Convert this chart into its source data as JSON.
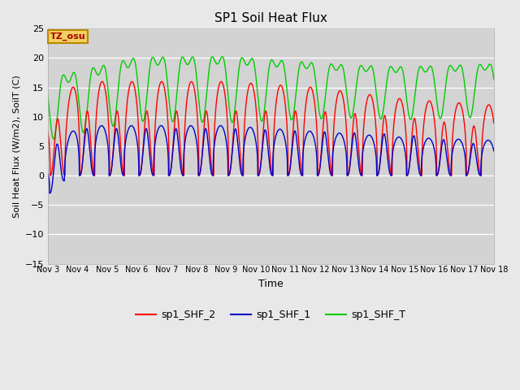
{
  "title": "SP1 Soil Heat Flux",
  "ylabel": "Soil Heat Flux (W/m2), SoilT (C)",
  "xlabel": "Time",
  "ylim": [
    -15,
    25
  ],
  "yticks": [
    -15,
    -10,
    -5,
    0,
    5,
    10,
    15,
    20,
    25
  ],
  "background_color": "#e8e8e8",
  "plot_bg_color": "#d3d3d3",
  "grid_color": "#ffffff",
  "tz_label": "TZ_osu",
  "legend_labels": [
    "sp1_SHF_2",
    "sp1_SHF_1",
    "sp1_SHF_T"
  ],
  "line_colors": [
    "#ff0000",
    "#0000cc",
    "#00cc00"
  ],
  "x_tick_labels": [
    "Nov 3",
    "Nov 4",
    "Nov 5",
    "Nov 6",
    "Nov 7",
    "Nov 8",
    "Nov 9",
    "Nov 10",
    "Nov 11",
    "Nov 12",
    "Nov 13",
    "Nov 14",
    "Nov 15",
    "Nov 16",
    "Nov 17",
    "Nov 18"
  ],
  "n_days": 15,
  "points_per_day": 480
}
